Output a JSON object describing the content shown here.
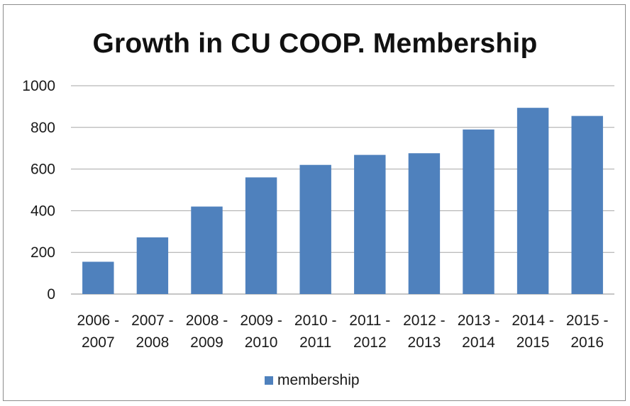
{
  "chart_data": {
    "type": "bar",
    "title": "Growth in CU COOP. Membership",
    "categories": [
      [
        "2006 -",
        "2007"
      ],
      [
        "2007 -",
        "2008"
      ],
      [
        "2008 -",
        "2009"
      ],
      [
        "2009 -",
        "2010"
      ],
      [
        "2010 -",
        "2011"
      ],
      [
        "2011 -",
        "2012"
      ],
      [
        "2012 -",
        "2013"
      ],
      [
        "2013 -",
        "2014"
      ],
      [
        "2014 -",
        "2015"
      ],
      [
        "2015 -",
        "2016"
      ]
    ],
    "series": [
      {
        "name": "membership",
        "color": "#4f81bd",
        "values": [
          155,
          272,
          420,
          560,
          620,
          668,
          676,
          790,
          894,
          855
        ]
      }
    ],
    "ylim": [
      0,
      1000
    ],
    "yticks": [
      0,
      200,
      400,
      600,
      800,
      1000
    ],
    "grid": true,
    "legend_position": "bottom"
  }
}
